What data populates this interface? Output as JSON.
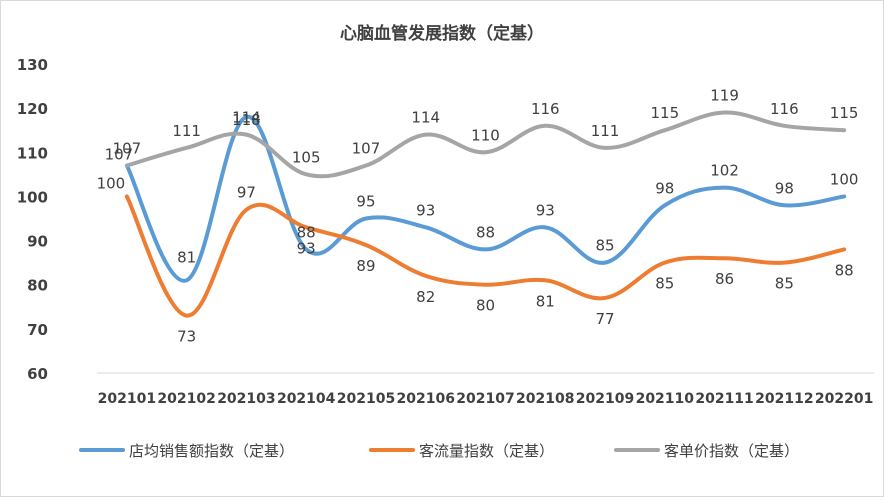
{
  "chart_data": {
    "type": "line",
    "title": "心脑血管发展指数（定基）",
    "categories": [
      "202101",
      "202102",
      "202103",
      "202104",
      "202105",
      "202106",
      "202107",
      "202108",
      "202109",
      "202110",
      "202111",
      "202112",
      "202201"
    ],
    "ylim": [
      60,
      130
    ],
    "yticks": [
      60,
      70,
      80,
      90,
      100,
      110,
      120,
      130
    ],
    "grid": false,
    "legend_position": "bottom",
    "smooth": true,
    "series": [
      {
        "name": "店均销售额指数（定基）",
        "color": "#5B9BD5",
        "values": [
          107,
          81,
          118,
          88,
          95,
          93,
          88,
          93,
          85,
          98,
          102,
          98,
          100
        ]
      },
      {
        "name": "客流量指数（定基）",
        "color": "#ED7D31",
        "values": [
          100,
          73,
          97,
          93,
          89,
          82,
          80,
          81,
          77,
          85,
          86,
          85,
          88
        ]
      },
      {
        "name": "客单价指数（定基）",
        "color": "#A5A5A5",
        "values": [
          107,
          111,
          114,
          105,
          107,
          114,
          110,
          116,
          111,
          115,
          119,
          116,
          115
        ]
      }
    ]
  }
}
